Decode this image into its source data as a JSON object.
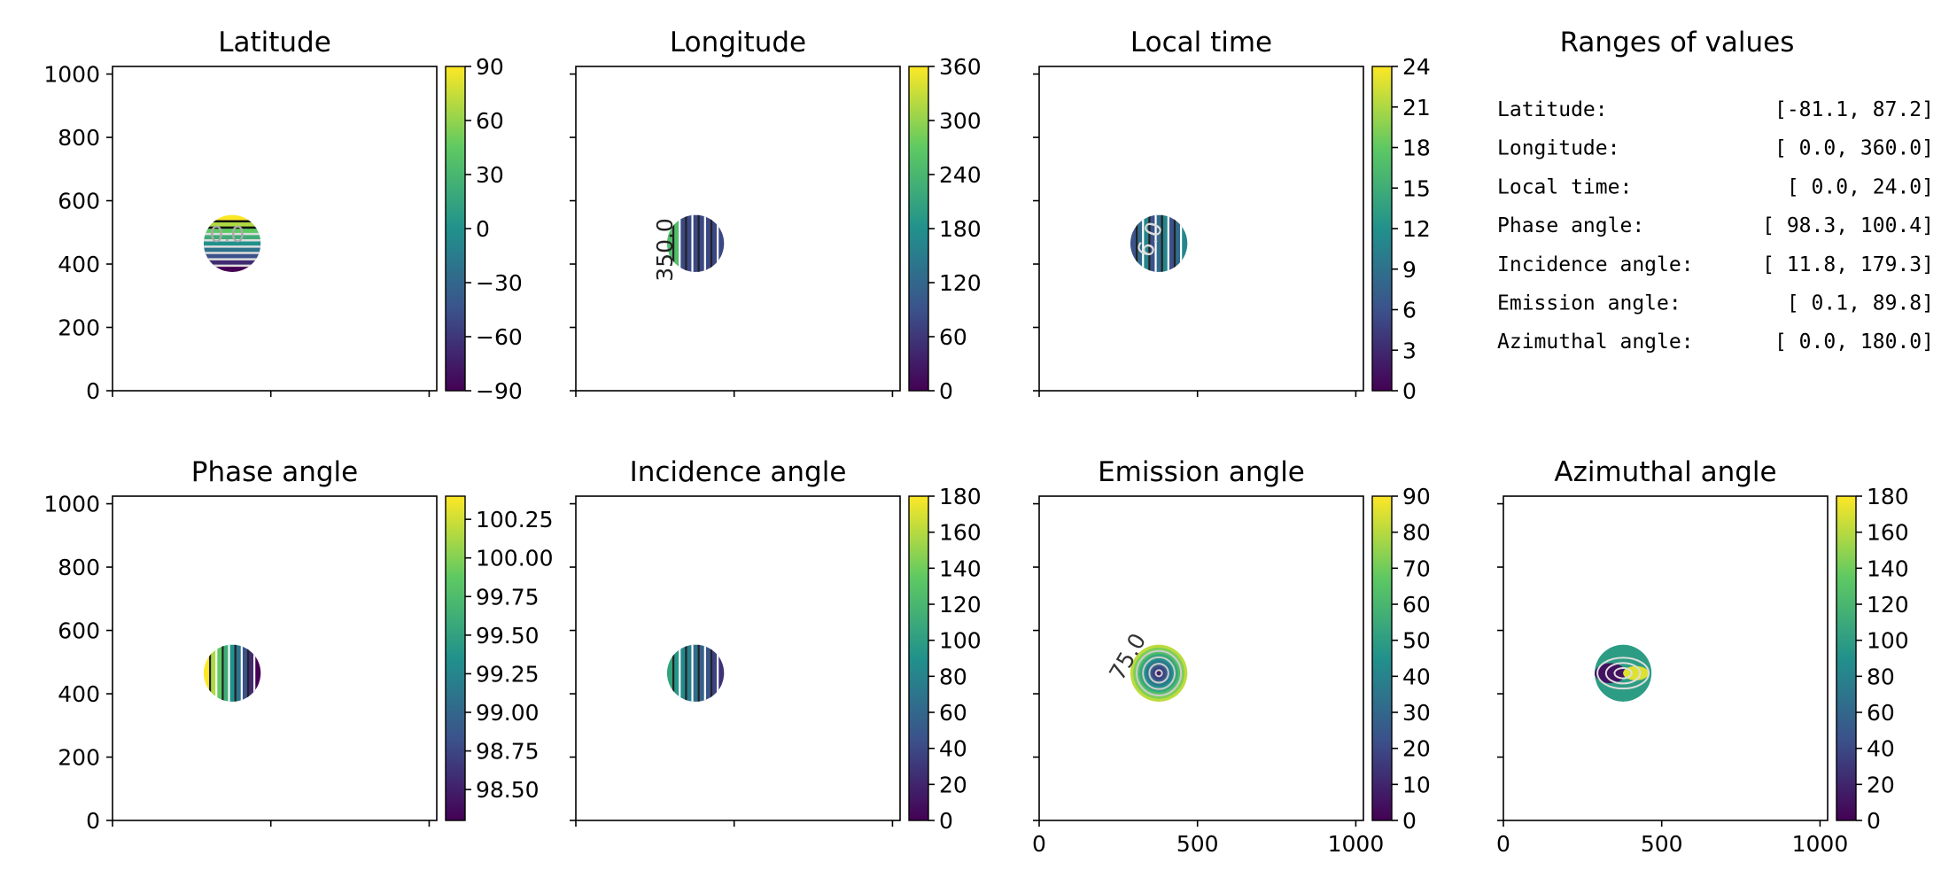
{
  "chart_data": [
    {
      "type": "heatmap",
      "title": "Latitude",
      "xlim": [
        0,
        1024
      ],
      "ylim": [
        0,
        1024
      ],
      "xticks": [
        0,
        500,
        1000
      ],
      "yticks": [
        0,
        200,
        400,
        600,
        800,
        1000
      ],
      "show_x_tick_labels": false,
      "show_y_tick_labels": true,
      "disk": {
        "cx": 378,
        "cy": 465,
        "r": 90
      },
      "pattern": "horizontal-bands",
      "colorbar": {
        "min": -90,
        "max": 90,
        "ticks": [
          "90",
          "60",
          "30",
          "0",
          "−30",
          "−60",
          "−90"
        ]
      },
      "contour_labels": [
        {
          "text": "0.0",
          "x": 362,
          "y": 470,
          "color": "#aaaaaa",
          "rotate": 0
        }
      ]
    },
    {
      "type": "heatmap",
      "title": "Longitude",
      "xlim": [
        0,
        1024
      ],
      "ylim": [
        0,
        1024
      ],
      "xticks": [
        0,
        500,
        1000
      ],
      "yticks": [
        0,
        200,
        400,
        600,
        800,
        1000
      ],
      "show_x_tick_labels": false,
      "show_y_tick_labels": false,
      "disk": {
        "cx": 378,
        "cy": 465,
        "r": 90
      },
      "pattern": "vertical-bands",
      "colorbar": {
        "min": 0,
        "max": 360,
        "ticks": [
          "360",
          "300",
          "240",
          "180",
          "120",
          "60",
          "0"
        ]
      },
      "contour_labels": [
        {
          "text": "350.0",
          "x": 305,
          "y": 445,
          "color": "#222222",
          "rotate": -90
        }
      ]
    },
    {
      "type": "heatmap",
      "title": "Local time",
      "xlim": [
        0,
        1024
      ],
      "ylim": [
        0,
        1024
      ],
      "xticks": [
        0,
        500,
        1000
      ],
      "yticks": [
        0,
        200,
        400,
        600,
        800,
        1000
      ],
      "show_x_tick_labels": false,
      "show_y_tick_labels": false,
      "disk": {
        "cx": 378,
        "cy": 465,
        "r": 90
      },
      "pattern": "vertical-bands",
      "colorbar": {
        "min": 0,
        "max": 24,
        "ticks": [
          "24",
          "21",
          "18",
          "15",
          "12",
          "9",
          "6",
          "3",
          "0"
        ]
      },
      "contour_labels": [
        {
          "text": "6.0",
          "x": 372,
          "y": 470,
          "color": "#dddddd",
          "rotate": -70
        }
      ]
    },
    {
      "type": "heatmap",
      "title": "Phase angle",
      "xlim": [
        0,
        1024
      ],
      "ylim": [
        0,
        1024
      ],
      "xticks": [
        0,
        500,
        1000
      ],
      "yticks": [
        0,
        200,
        400,
        600,
        800,
        1000
      ],
      "show_x_tick_labels": false,
      "show_y_tick_labels": true,
      "disk": {
        "cx": 378,
        "cy": 465,
        "r": 90
      },
      "pattern": "vertical-bands",
      "colorbar": {
        "min": 98.3,
        "max": 100.4,
        "ticks": [
          "100.25",
          "100.00",
          "99.75",
          "99.50",
          "99.25",
          "99.00",
          "98.75",
          "98.50"
        ]
      },
      "contour_labels": []
    },
    {
      "type": "heatmap",
      "title": "Incidence angle",
      "xlim": [
        0,
        1024
      ],
      "ylim": [
        0,
        1024
      ],
      "xticks": [
        0,
        500,
        1000
      ],
      "yticks": [
        0,
        200,
        400,
        600,
        800,
        1000
      ],
      "show_x_tick_labels": false,
      "show_y_tick_labels": false,
      "disk": {
        "cx": 378,
        "cy": 465,
        "r": 90
      },
      "pattern": "vertical-bands",
      "colorbar": {
        "min": 0,
        "max": 180,
        "ticks": [
          "180",
          "160",
          "140",
          "120",
          "100",
          "80",
          "60",
          "40",
          "20",
          "0"
        ]
      },
      "contour_labels": []
    },
    {
      "type": "heatmap",
      "title": "Emission angle",
      "xlim": [
        0,
        1024
      ],
      "ylim": [
        0,
        1024
      ],
      "xticks": [
        0,
        500,
        1000
      ],
      "yticks": [
        0,
        200,
        400,
        600,
        800,
        1000
      ],
      "show_x_tick_labels": true,
      "show_y_tick_labels": false,
      "disk": {
        "cx": 378,
        "cy": 465,
        "r": 90
      },
      "pattern": "concentric-rings",
      "colorbar": {
        "min": 0,
        "max": 90,
        "ticks": [
          "90",
          "80",
          "70",
          "60",
          "50",
          "40",
          "30",
          "20",
          "10",
          "0"
        ]
      },
      "contour_labels": [
        {
          "text": "75.0",
          "x": 300,
          "y": 505,
          "color": "#333333",
          "rotate": -60
        }
      ]
    },
    {
      "type": "heatmap",
      "title": "Azimuthal angle",
      "xlim": [
        0,
        1024
      ],
      "ylim": [
        0,
        1024
      ],
      "xticks": [
        0,
        500,
        1000
      ],
      "yticks": [
        0,
        200,
        400,
        600,
        800,
        1000
      ],
      "show_x_tick_labels": true,
      "show_y_tick_labels": false,
      "disk": {
        "cx": 378,
        "cy": 465,
        "r": 90
      },
      "pattern": "radial-lobes",
      "colorbar": {
        "min": 0,
        "max": 180,
        "ticks": [
          "180",
          "160",
          "140",
          "120",
          "100",
          "80",
          "60",
          "40",
          "20",
          "0"
        ]
      },
      "contour_labels": []
    }
  ],
  "ranges_panel": {
    "title": "Ranges of values",
    "rows": [
      {
        "name": "Latitude:",
        "range": "[-81.1,  87.2]"
      },
      {
        "name": "Longitude:",
        "range": "[  0.0, 360.0]"
      },
      {
        "name": "Local time:",
        "range": "[  0.0,  24.0]"
      },
      {
        "name": "Phase angle:",
        "range": "[ 98.3, 100.4]"
      },
      {
        "name": "Incidence angle:",
        "range": "[ 11.8, 179.3]"
      },
      {
        "name": "Emission angle:",
        "range": "[  0.1,  89.8]"
      },
      {
        "name": "Azimuthal angle:",
        "range": "[  0.0, 180.0]"
      }
    ]
  },
  "colors": {
    "colormap": [
      "#440154",
      "#3b528b",
      "#21918c",
      "#5ec962",
      "#fde725"
    ]
  }
}
